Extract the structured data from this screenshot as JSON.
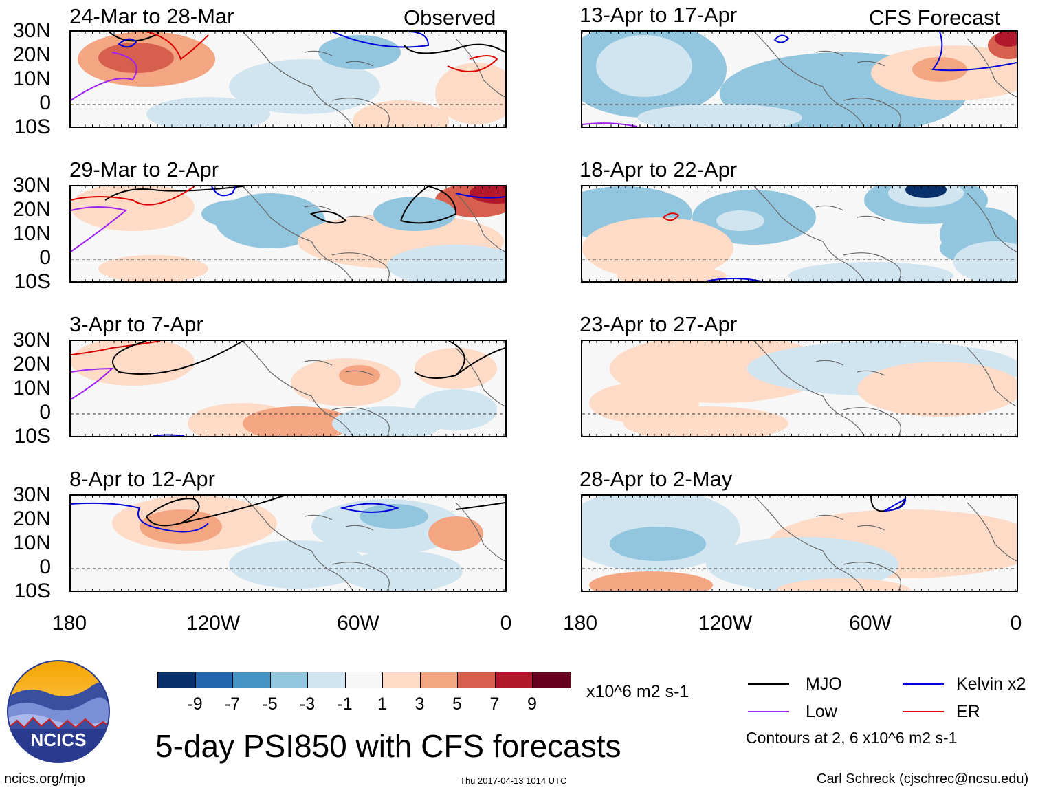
{
  "tags": {
    "observed": "Observed",
    "forecast": "CFS Forecast"
  },
  "observed_panels": [
    {
      "title": "24-Mar to 28-Mar"
    },
    {
      "title": "29-Mar to 2-Apr"
    },
    {
      "title": "3-Apr to 7-Apr"
    },
    {
      "title": "8-Apr to 12-Apr"
    }
  ],
  "forecast_panels": [
    {
      "title": "13-Apr to 17-Apr"
    },
    {
      "title": "18-Apr to 22-Apr"
    },
    {
      "title": "23-Apr to 27-Apr"
    },
    {
      "title": "28-Apr to 2-May"
    }
  ],
  "axes": {
    "lat_labels": [
      "30N",
      "20N",
      "10N",
      "0",
      "10S"
    ],
    "lon_labels": [
      "180",
      "120W",
      "60W",
      "0"
    ]
  },
  "colorbar": {
    "colors": [
      "#08306b",
      "#2166ac",
      "#4393c3",
      "#92c5de",
      "#d1e5f0",
      "#f7f7f7",
      "#fddbc7",
      "#f4a582",
      "#d6604d",
      "#b2182b",
      "#67001f"
    ],
    "labels": [
      "-9",
      "-7",
      "-5",
      "-3",
      "-1",
      "1",
      "3",
      "5",
      "7",
      "9"
    ],
    "units": "x10^6 m2 s-1"
  },
  "legend": {
    "items": [
      {
        "label": "MJO",
        "color": "#000000"
      },
      {
        "label": "Kelvin x2",
        "color": "#0000dd"
      },
      {
        "label": "Low",
        "color": "#a020f0"
      },
      {
        "label": "ER",
        "color": "#dd0000"
      }
    ],
    "note": "Contours at 2, 6 x10^6 m2 s-1"
  },
  "title": "5-day PSI850 with CFS forecasts",
  "footer": {
    "url": "ncics.org/mjo",
    "timestamp": "Thu 2017-04-13 1014 UTC",
    "author": "Carl Schreck (cjschrec@ncsu.edu)"
  },
  "logo": {
    "text": "NCICS"
  }
}
